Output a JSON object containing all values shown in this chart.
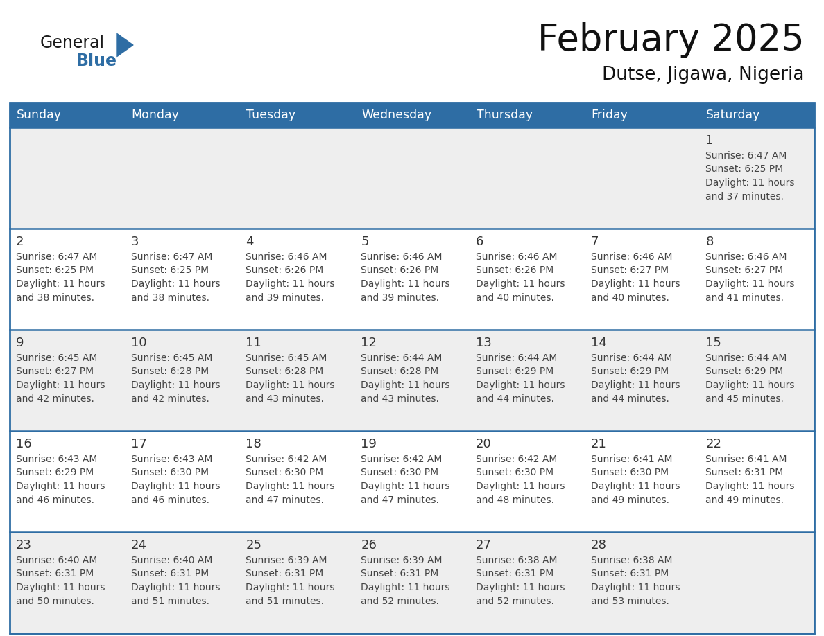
{
  "title": "February 2025",
  "subtitle": "Dutse, Jigawa, Nigeria",
  "header_bg": "#2E6DA4",
  "header_text_color": "#FFFFFF",
  "day_names": [
    "Sunday",
    "Monday",
    "Tuesday",
    "Wednesday",
    "Thursday",
    "Friday",
    "Saturday"
  ],
  "cell_bg_light": "#EEEEEE",
  "cell_bg_white": "#FFFFFF",
  "cell_line_color": "#2E6DA4",
  "text_color": "#444444",
  "day_num_color": "#333333",
  "logo_general_color": "#1a1a1a",
  "logo_blue_color": "#2E6DA4",
  "days": [
    {
      "day": 1,
      "col": 6,
      "row": 0,
      "sunrise": "6:47 AM",
      "sunset": "6:25 PM",
      "daylight_hours": 11,
      "daylight_minutes": 37
    },
    {
      "day": 2,
      "col": 0,
      "row": 1,
      "sunrise": "6:47 AM",
      "sunset": "6:25 PM",
      "daylight_hours": 11,
      "daylight_minutes": 38
    },
    {
      "day": 3,
      "col": 1,
      "row": 1,
      "sunrise": "6:47 AM",
      "sunset": "6:25 PM",
      "daylight_hours": 11,
      "daylight_minutes": 38
    },
    {
      "day": 4,
      "col": 2,
      "row": 1,
      "sunrise": "6:46 AM",
      "sunset": "6:26 PM",
      "daylight_hours": 11,
      "daylight_minutes": 39
    },
    {
      "day": 5,
      "col": 3,
      "row": 1,
      "sunrise": "6:46 AM",
      "sunset": "6:26 PM",
      "daylight_hours": 11,
      "daylight_minutes": 39
    },
    {
      "day": 6,
      "col": 4,
      "row": 1,
      "sunrise": "6:46 AM",
      "sunset": "6:26 PM",
      "daylight_hours": 11,
      "daylight_minutes": 40
    },
    {
      "day": 7,
      "col": 5,
      "row": 1,
      "sunrise": "6:46 AM",
      "sunset": "6:27 PM",
      "daylight_hours": 11,
      "daylight_minutes": 40
    },
    {
      "day": 8,
      "col": 6,
      "row": 1,
      "sunrise": "6:46 AM",
      "sunset": "6:27 PM",
      "daylight_hours": 11,
      "daylight_minutes": 41
    },
    {
      "day": 9,
      "col": 0,
      "row": 2,
      "sunrise": "6:45 AM",
      "sunset": "6:27 PM",
      "daylight_hours": 11,
      "daylight_minutes": 42
    },
    {
      "day": 10,
      "col": 1,
      "row": 2,
      "sunrise": "6:45 AM",
      "sunset": "6:28 PM",
      "daylight_hours": 11,
      "daylight_minutes": 42
    },
    {
      "day": 11,
      "col": 2,
      "row": 2,
      "sunrise": "6:45 AM",
      "sunset": "6:28 PM",
      "daylight_hours": 11,
      "daylight_minutes": 43
    },
    {
      "day": 12,
      "col": 3,
      "row": 2,
      "sunrise": "6:44 AM",
      "sunset": "6:28 PM",
      "daylight_hours": 11,
      "daylight_minutes": 43
    },
    {
      "day": 13,
      "col": 4,
      "row": 2,
      "sunrise": "6:44 AM",
      "sunset": "6:29 PM",
      "daylight_hours": 11,
      "daylight_minutes": 44
    },
    {
      "day": 14,
      "col": 5,
      "row": 2,
      "sunrise": "6:44 AM",
      "sunset": "6:29 PM",
      "daylight_hours": 11,
      "daylight_minutes": 44
    },
    {
      "day": 15,
      "col": 6,
      "row": 2,
      "sunrise": "6:44 AM",
      "sunset": "6:29 PM",
      "daylight_hours": 11,
      "daylight_minutes": 45
    },
    {
      "day": 16,
      "col": 0,
      "row": 3,
      "sunrise": "6:43 AM",
      "sunset": "6:29 PM",
      "daylight_hours": 11,
      "daylight_minutes": 46
    },
    {
      "day": 17,
      "col": 1,
      "row": 3,
      "sunrise": "6:43 AM",
      "sunset": "6:30 PM",
      "daylight_hours": 11,
      "daylight_minutes": 46
    },
    {
      "day": 18,
      "col": 2,
      "row": 3,
      "sunrise": "6:42 AM",
      "sunset": "6:30 PM",
      "daylight_hours": 11,
      "daylight_minutes": 47
    },
    {
      "day": 19,
      "col": 3,
      "row": 3,
      "sunrise": "6:42 AM",
      "sunset": "6:30 PM",
      "daylight_hours": 11,
      "daylight_minutes": 47
    },
    {
      "day": 20,
      "col": 4,
      "row": 3,
      "sunrise": "6:42 AM",
      "sunset": "6:30 PM",
      "daylight_hours": 11,
      "daylight_minutes": 48
    },
    {
      "day": 21,
      "col": 5,
      "row": 3,
      "sunrise": "6:41 AM",
      "sunset": "6:30 PM",
      "daylight_hours": 11,
      "daylight_minutes": 49
    },
    {
      "day": 22,
      "col": 6,
      "row": 3,
      "sunrise": "6:41 AM",
      "sunset": "6:31 PM",
      "daylight_hours": 11,
      "daylight_minutes": 49
    },
    {
      "day": 23,
      "col": 0,
      "row": 4,
      "sunrise": "6:40 AM",
      "sunset": "6:31 PM",
      "daylight_hours": 11,
      "daylight_minutes": 50
    },
    {
      "day": 24,
      "col": 1,
      "row": 4,
      "sunrise": "6:40 AM",
      "sunset": "6:31 PM",
      "daylight_hours": 11,
      "daylight_minutes": 51
    },
    {
      "day": 25,
      "col": 2,
      "row": 4,
      "sunrise": "6:39 AM",
      "sunset": "6:31 PM",
      "daylight_hours": 11,
      "daylight_minutes": 51
    },
    {
      "day": 26,
      "col": 3,
      "row": 4,
      "sunrise": "6:39 AM",
      "sunset": "6:31 PM",
      "daylight_hours": 11,
      "daylight_minutes": 52
    },
    {
      "day": 27,
      "col": 4,
      "row": 4,
      "sunrise": "6:38 AM",
      "sunset": "6:31 PM",
      "daylight_hours": 11,
      "daylight_minutes": 52
    },
    {
      "day": 28,
      "col": 5,
      "row": 4,
      "sunrise": "6:38 AM",
      "sunset": "6:31 PM",
      "daylight_hours": 11,
      "daylight_minutes": 53
    }
  ]
}
